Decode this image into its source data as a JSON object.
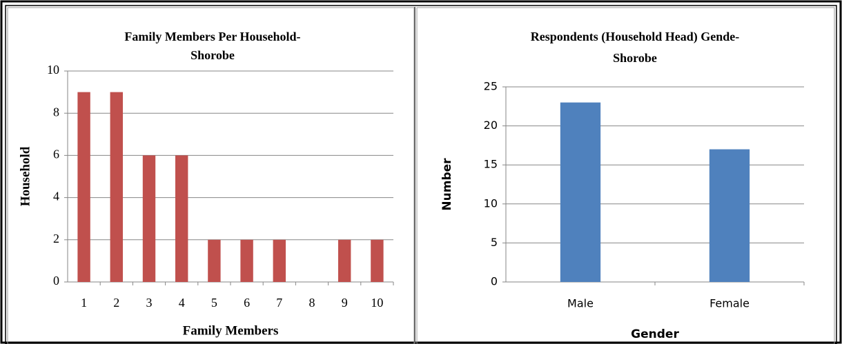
{
  "chart_data": [
    {
      "type": "bar",
      "title": [
        "Family Members Per Household-",
        "Shorobe"
      ],
      "x_label": "Family Members",
      "y_label": "Household",
      "categories": [
        "1",
        "2",
        "3",
        "4",
        "5",
        "6",
        "7",
        "8",
        "9",
        "10"
      ],
      "values": [
        9,
        9,
        6,
        6,
        2,
        2,
        2,
        0,
        2,
        2
      ],
      "color": "#c0504d",
      "ylim": [
        0,
        10
      ],
      "yticks": [
        0,
        2,
        4,
        6,
        8,
        10
      ],
      "grid": true
    },
    {
      "type": "bar",
      "title": [
        "Respondents (Household Head) Gende-",
        "Shorobe"
      ],
      "x_label": "Gender",
      "y_label": "Number",
      "categories": [
        "Male",
        "Female"
      ],
      "values": [
        23,
        17
      ],
      "color": "#4f81bd",
      "ylim": [
        0,
        25
      ],
      "yticks": [
        0,
        5,
        10,
        15,
        20,
        25
      ],
      "grid": true
    }
  ]
}
